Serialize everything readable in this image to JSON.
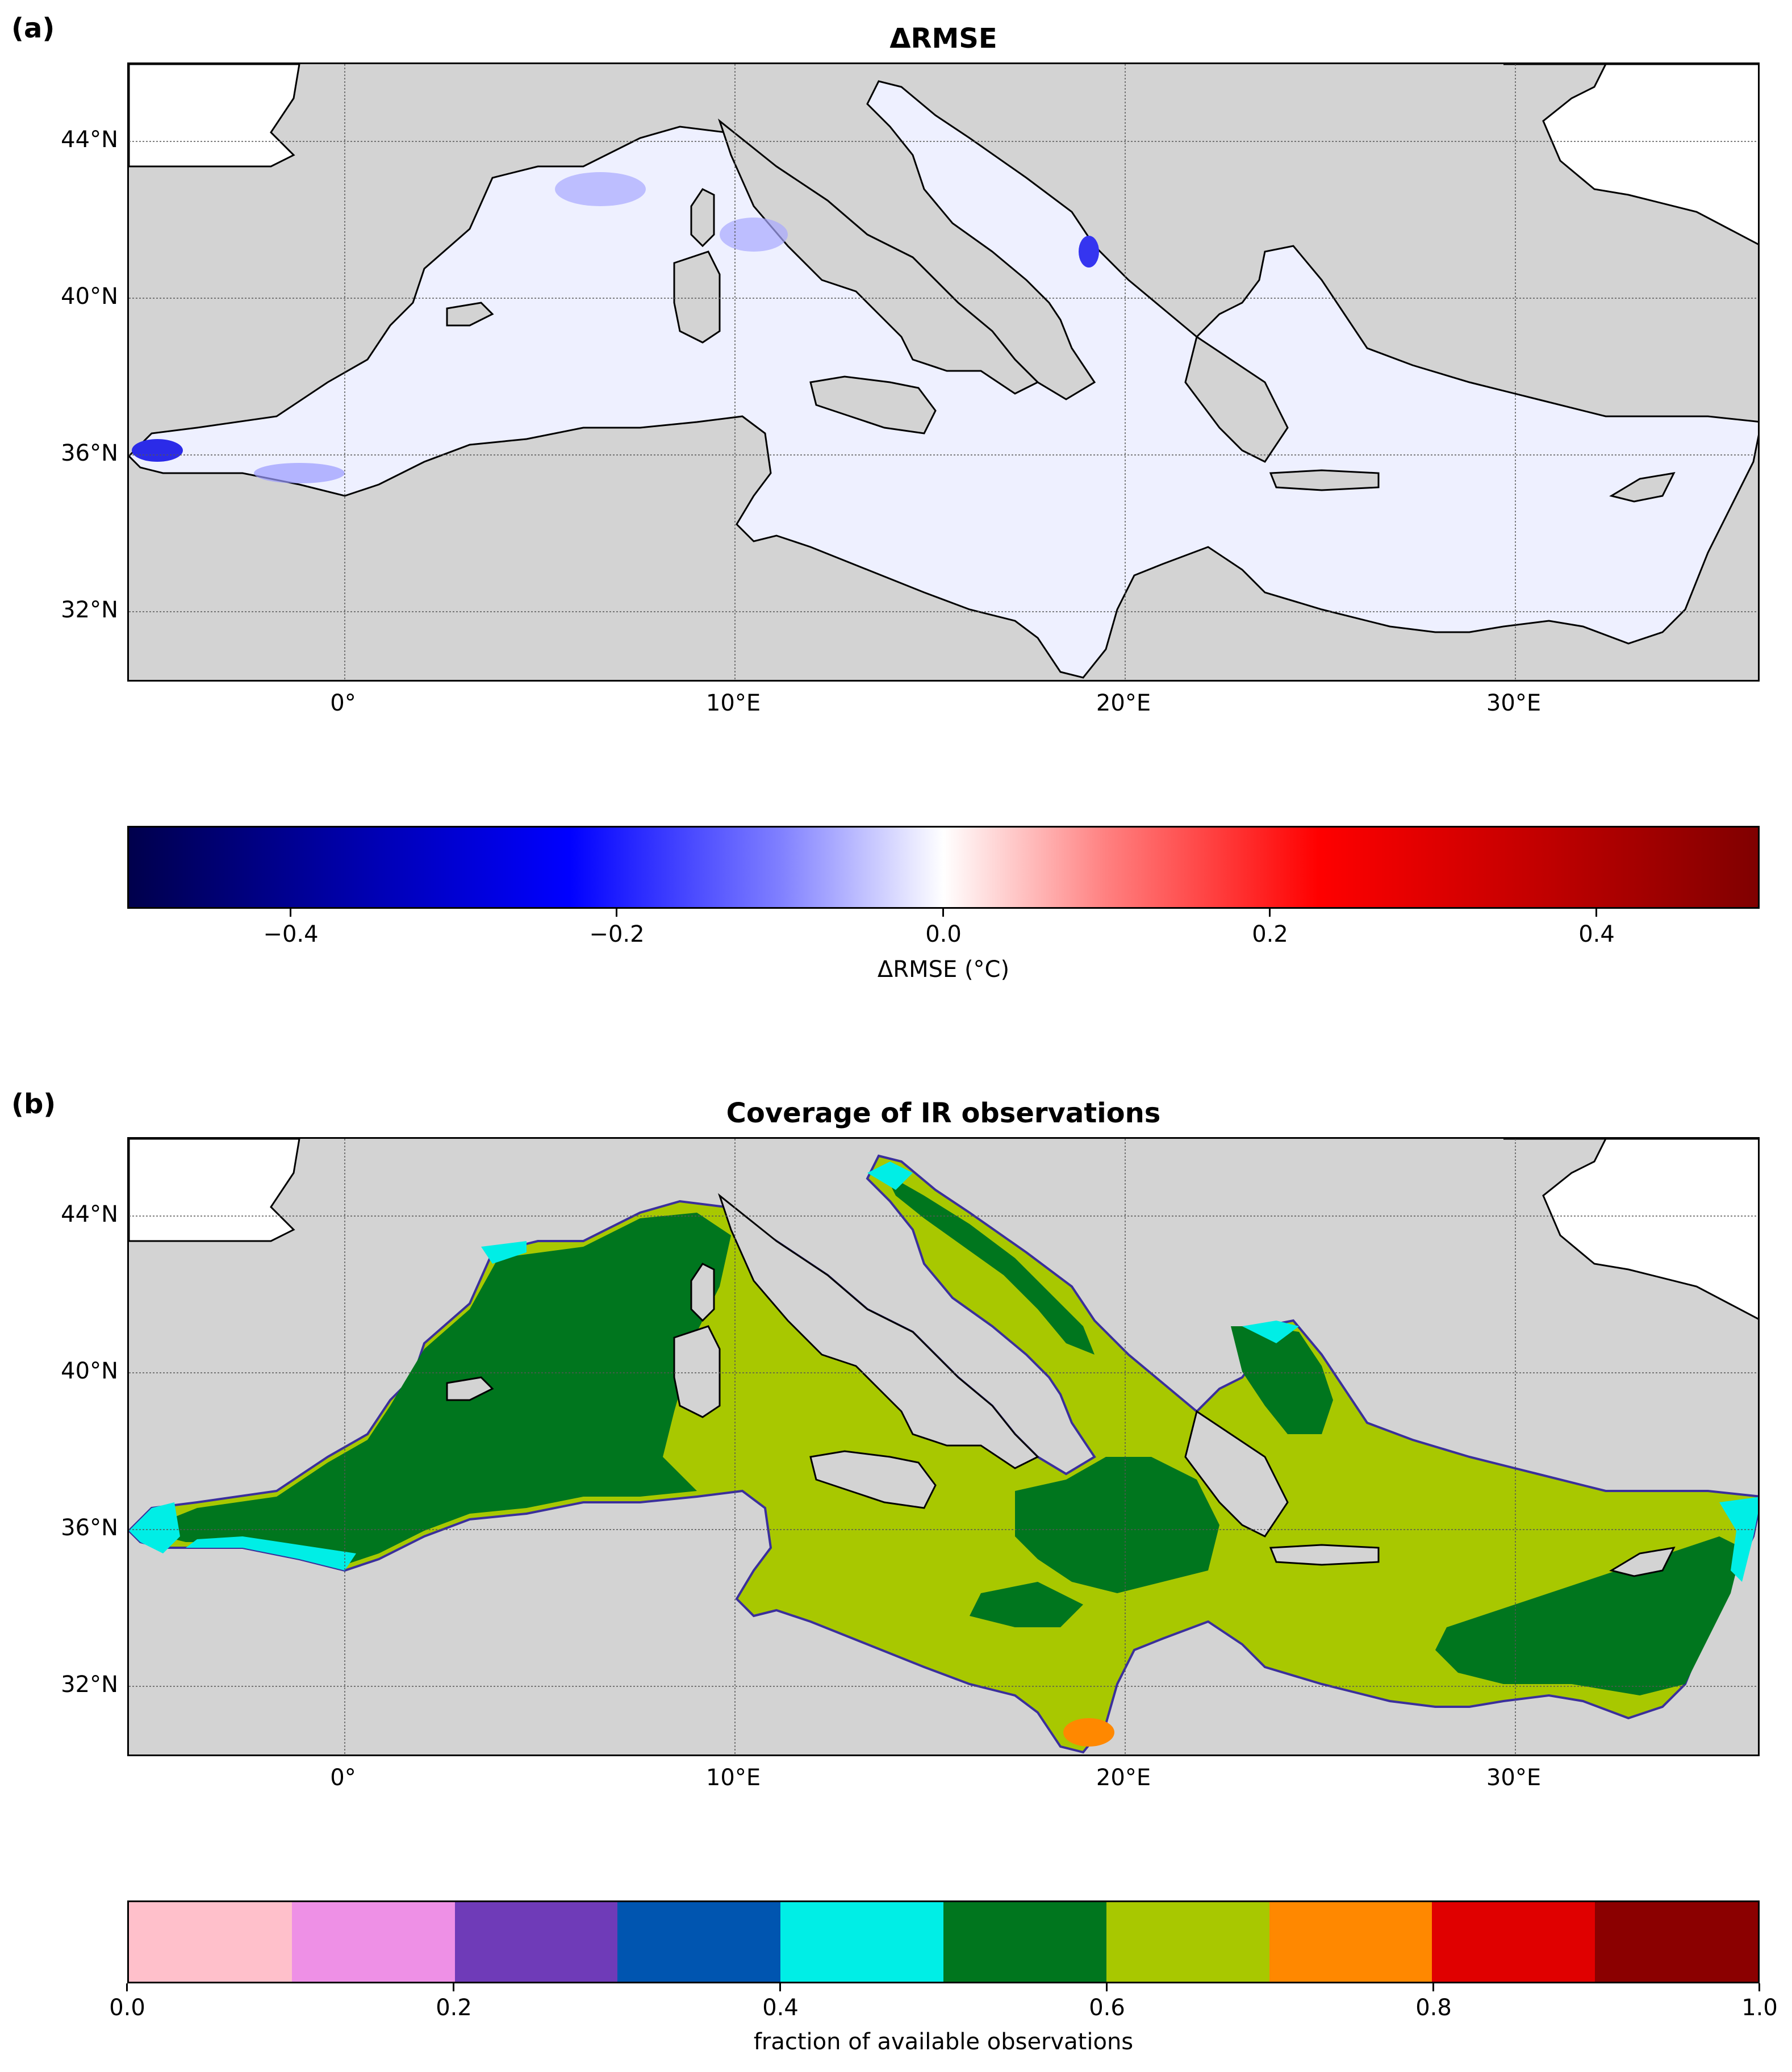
{
  "panel_a": {
    "letter": "(a)",
    "title": "ΔRMSE",
    "lat_ticks": [
      "44°N",
      "40°N",
      "36°N",
      "32°N"
    ],
    "lon_ticks": [
      "0°",
      "10°E",
      "20°E",
      "30°E"
    ],
    "colorbar": {
      "label": "ΔRMSE (°C)",
      "ticks": [
        "−0.4",
        "−0.2",
        "0.0",
        "0.2",
        "0.4"
      ],
      "range": [
        -0.5,
        0.5
      ],
      "colormap": "seismic"
    }
  },
  "panel_b": {
    "letter": "(b)",
    "title": "Coverage of IR observations",
    "lat_ticks": [
      "44°N",
      "40°N",
      "36°N",
      "32°N"
    ],
    "lon_ticks": [
      "0°",
      "10°E",
      "20°E",
      "30°E"
    ],
    "colorbar": {
      "label": "fraction of available observations",
      "ticks": [
        "0.0",
        "0.2",
        "0.4",
        "0.6",
        "0.8",
        "1.0"
      ],
      "range": [
        0,
        1
      ],
      "bins": [
        {
          "from": 0.0,
          "to": 0.1,
          "color": "#ffc0cb"
        },
        {
          "from": 0.1,
          "to": 0.2,
          "color": "#ee90e6"
        },
        {
          "from": 0.2,
          "to": 0.3,
          "color": "#6f3bb8"
        },
        {
          "from": 0.3,
          "to": 0.4,
          "color": "#0055b0"
        },
        {
          "from": 0.4,
          "to": 0.5,
          "color": "#00eee6"
        },
        {
          "from": 0.5,
          "to": 0.6,
          "color": "#00761e"
        },
        {
          "from": 0.6,
          "to": 0.7,
          "color": "#a8c800"
        },
        {
          "from": 0.7,
          "to": 0.8,
          "color": "#ff8800"
        },
        {
          "from": 0.8,
          "to": 0.9,
          "color": "#e00000"
        },
        {
          "from": 0.9,
          "to": 1.0,
          "color": "#8b0000"
        }
      ]
    }
  },
  "colors": {
    "land": "#d3d3d3",
    "outside_domain": "#ffffff",
    "sea_a": "#eef0ff",
    "sea_b_dominant": "#a8c800",
    "sea_b_secondary": "#00761e"
  }
}
